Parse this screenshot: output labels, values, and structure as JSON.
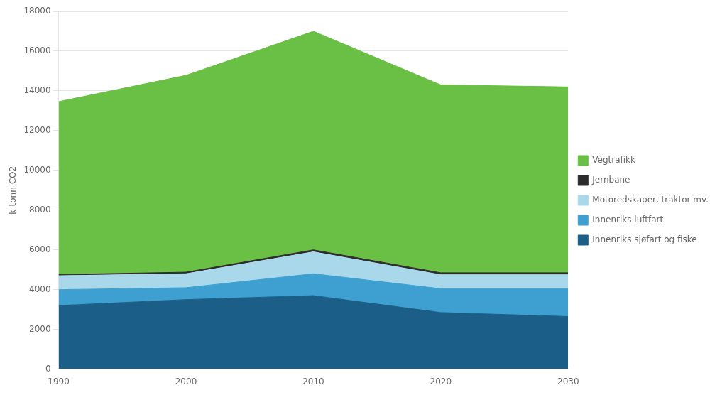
{
  "chart_data": {
    "type": "area",
    "stacked": true,
    "x": [
      1990,
      2000,
      2010,
      2020,
      2030
    ],
    "xlim": [
      1990,
      2030
    ],
    "xticks": [
      1990,
      2000,
      2010,
      2020,
      2030
    ],
    "ylabel": "k-tonn CO2",
    "ylim": [
      0,
      18000
    ],
    "yticks": [
      0,
      2000,
      4000,
      6000,
      8000,
      10000,
      12000,
      14000,
      16000,
      18000
    ],
    "grid": true,
    "legend": "right",
    "series": [
      {
        "name": "Innenriks sjøfart og fiske",
        "color": "#1b5e87",
        "values": [
          3200,
          3500,
          3700,
          2850,
          2650
        ]
      },
      {
        "name": "Innenriks luftfart",
        "color": "#3ea0d0",
        "values": [
          800,
          600,
          1100,
          1200,
          1400
        ]
      },
      {
        "name": "Motoredskaper, traktor mv.",
        "color": "#a8d8ea",
        "values": [
          700,
          700,
          1100,
          700,
          700
        ]
      },
      {
        "name": "Jernbane",
        "color": "#2c2c2c",
        "values": [
          60,
          80,
          100,
          100,
          100
        ]
      },
      {
        "name": "Vegtrafikk",
        "color": "#6abf45",
        "values": [
          8700,
          9900,
          11000,
          9450,
          9350
        ]
      }
    ]
  }
}
